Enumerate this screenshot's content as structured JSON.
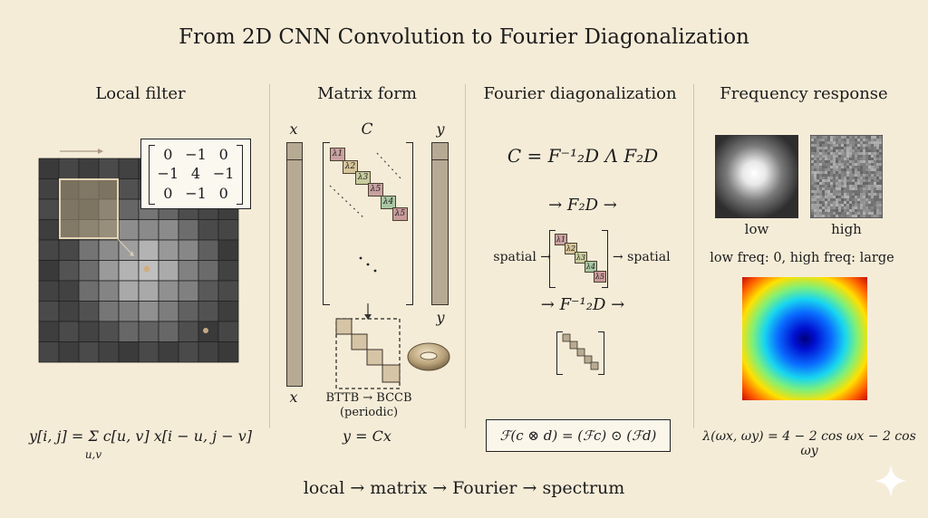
{
  "title": "From 2D CNN Convolution to Fourier Diagonalization",
  "panels": {
    "local": {
      "title": "Local filter",
      "kernel": [
        "0",
        "−1",
        "0",
        "−1",
        "4",
        "−1",
        "0",
        "−1",
        "0"
      ],
      "equation": "y[i, j] = Σ c[u, v] x[i − u, j − v]",
      "sum_sub": "u,v"
    },
    "matrix": {
      "title": "Matrix form",
      "x_label": "x",
      "c_label": "C",
      "y_label": "y",
      "x_bottom": "x",
      "y_mid": "y",
      "lambdas": [
        "λ1",
        "λ2",
        "λ3",
        "λ5",
        "λ4",
        "λ5"
      ],
      "bttb": "BTTB → BCCB",
      "periodic": "(periodic)",
      "equation": "y = Cx"
    },
    "fourier": {
      "title": "Fourier diagonalization",
      "formula": "C = F⁻¹₂D Λ F₂D",
      "step1": "→  F₂D  →",
      "spatial_left": "spatial →",
      "spatial_right": "→ spatial",
      "lambdas": [
        "λ1",
        "λ2",
        "λ3",
        "λ4",
        "λ5"
      ],
      "step2": "→  F⁻¹₂D  →",
      "equation": "ℱ(c ⊗ d) = (ℱc) ⊙ (ℱd)"
    },
    "freq": {
      "title": "Frequency response",
      "low": "low",
      "high": "high",
      "note": "low freq: 0, high freq: large",
      "equation": "λ(ωx, ωy) = 4 − 2 cos ωx − 2 cos ωy"
    }
  },
  "flow": "local → matrix → Fourier → spectrum",
  "colors": {
    "background": "#f5ecd8",
    "lambda1": "#c9a1a1",
    "lambda2": "#d6c49a",
    "lambda3": "#b9c6a3",
    "lambda4": "#a9c7a3",
    "lambda5": "#c99a9a"
  }
}
